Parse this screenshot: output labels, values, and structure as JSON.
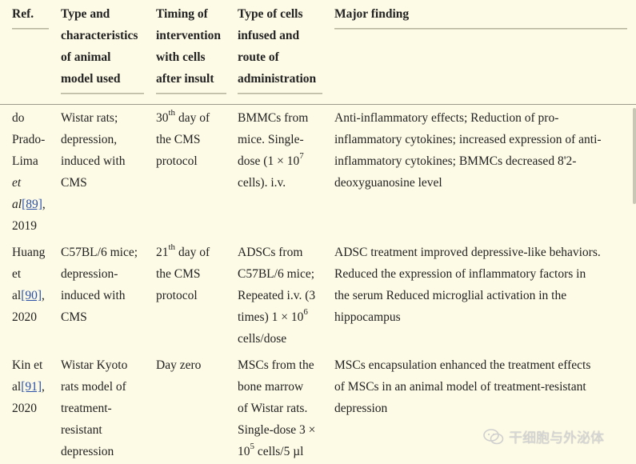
{
  "headers": {
    "ref": "Ref.",
    "model": [
      "Type and",
      "characteristics",
      "of animal",
      "model used"
    ],
    "timing": [
      "Timing of",
      "intervention",
      "with cells",
      "after insult"
    ],
    "cells": [
      "Type of cells",
      "infused and",
      "route of",
      "administration"
    ],
    "finding": "Major finding"
  },
  "rows": [
    {
      "ref": {
        "l1": "do",
        "l2": "Prado-",
        "l3": "Lima",
        "l4": "et",
        "l5": "al",
        "cite": "[89]",
        "tail": ",",
        "year": "2019"
      },
      "model": [
        "Wistar rats;",
        "depression,",
        "induced with",
        "CMS"
      ],
      "timing": {
        "num": "30",
        "sup": "th",
        "rest": " day of",
        "l2": "the CMS",
        "l3": "protocol"
      },
      "cells": {
        "l1": "BMMCs from",
        "l2": "mice. Single-",
        "l3a": "dose (1 × 10",
        "l3sup": "7",
        "l4": "cells). i.v."
      },
      "finding": [
        "Anti-inflammatory effects; Reduction of pro-",
        "inflammatory cytokines; increased expression of anti-",
        "inflammatory cytokines; BMMCs decreased 8'2-",
        "deoxyguanosine level"
      ]
    },
    {
      "ref": {
        "l1": "Huang",
        "l2": "et",
        "l3": "al",
        "cite": "[90]",
        "tail": ",",
        "year": "2020"
      },
      "model": [
        "C57BL/6 mice;",
        "depression-",
        "induced with",
        "CMS"
      ],
      "timing": {
        "num": "21",
        "sup": "th",
        "rest": " day of",
        "l2": "the CMS",
        "l3": "protocol"
      },
      "cells": {
        "l1": "ADSCs from",
        "l2": "C57BL/6 mice;",
        "l3": "Repeated i.v. (3",
        "l4a": "times) 1 × 10",
        "l4sup": "6",
        "l5": "cells/dose"
      },
      "finding": [
        "ADSC treatment improved depressive-like behaviors.",
        "Reduced the expression of inflammatory factors in",
        "the serum Reduced microglial activation in the",
        "hippocampus"
      ]
    },
    {
      "ref": {
        "l1": "Kin et",
        "l2": "al",
        "cite": "[91]",
        "tail": ",",
        "year": "2020"
      },
      "model": [
        "Wistar Kyoto",
        "rats model of",
        "treatment-",
        "resistant",
        "depression"
      ],
      "timing": {
        "l1": "Day zero"
      },
      "cells": {
        "l1": "MSCs from the",
        "l2": "bone marrow",
        "l3": "of Wistar rats.",
        "l4": "Single-dose 3 ×",
        "l5a": "10",
        "l5sup": "5",
        "l5b": " cells/5 µl"
      },
      "finding": [
        "MSCs encapsulation enhanced the treatment effects",
        "of MSCs in an animal model of treatment-resistant",
        "depression"
      ]
    }
  ],
  "watermark": {
    "text": "干细胞与外泌体",
    "icon": "wechat-icon"
  }
}
